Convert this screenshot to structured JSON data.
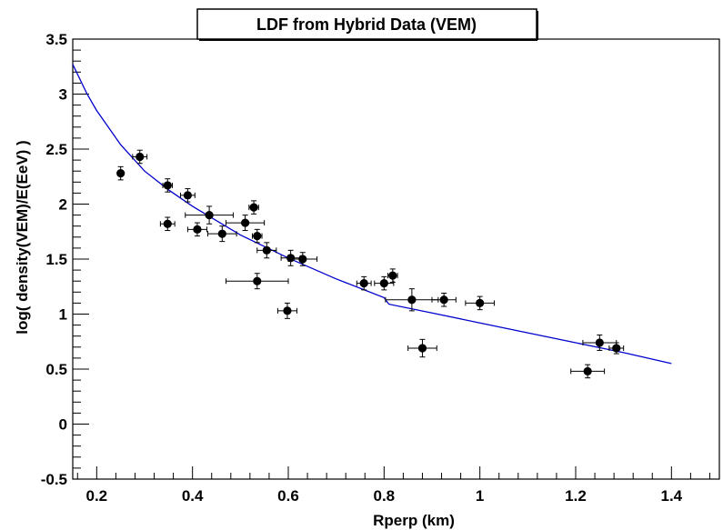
{
  "chart_data": {
    "type": "scatter",
    "title": "LDF from Hybrid Data (VEM)",
    "xlabel": "Rperp (km)",
    "ylabel": "log( density(VEM)/E(EeV) )",
    "xlim": [
      0.15,
      1.5
    ],
    "ylim": [
      -0.5,
      3.5
    ],
    "xticks": [
      {
        "v": 0.2,
        "label": "0.2"
      },
      {
        "v": 0.4,
        "label": "0.4"
      },
      {
        "v": 0.6,
        "label": "0.6"
      },
      {
        "v": 0.8,
        "label": "0.8"
      },
      {
        "v": 1.0,
        "label": "1"
      },
      {
        "v": 1.2,
        "label": "1.2"
      },
      {
        "v": 1.4,
        "label": "1.4"
      }
    ],
    "yticks": [
      {
        "v": -0.5,
        "label": "-0.5"
      },
      {
        "v": 0,
        "label": "0"
      },
      {
        "v": 0.5,
        "label": "0.5"
      },
      {
        "v": 1.0,
        "label": "1"
      },
      {
        "v": 1.5,
        "label": "1.5"
      },
      {
        "v": 2.0,
        "label": "2"
      },
      {
        "v": 2.5,
        "label": "2.5"
      },
      {
        "v": 3.0,
        "label": "3"
      },
      {
        "v": 3.5,
        "label": "3.5"
      }
    ],
    "grid": false,
    "colors": {
      "points": "#000000",
      "fit": "#0000cc",
      "frame": "#000000"
    },
    "points": [
      {
        "x": 0.25,
        "y": 2.28,
        "xerr": 0.0,
        "yerr": 0.06
      },
      {
        "x": 0.29,
        "y": 2.43,
        "xerr": 0.015,
        "yerr": 0.06
      },
      {
        "x": 0.348,
        "y": 2.17,
        "xerr": 0.01,
        "yerr": 0.06
      },
      {
        "x": 0.348,
        "y": 1.82,
        "xerr": 0.015,
        "yerr": 0.06
      },
      {
        "x": 0.39,
        "y": 2.08,
        "xerr": 0.015,
        "yerr": 0.06
      },
      {
        "x": 0.41,
        "y": 1.77,
        "xerr": 0.02,
        "yerr": 0.06
      },
      {
        "x": 0.435,
        "y": 1.9,
        "xerr": 0.05,
        "yerr": 0.08
      },
      {
        "x": 0.462,
        "y": 1.73,
        "xerr": 0.03,
        "yerr": 0.07
      },
      {
        "x": 0.51,
        "y": 1.83,
        "xerr": 0.04,
        "yerr": 0.07
      },
      {
        "x": 0.528,
        "y": 1.97,
        "xerr": 0.01,
        "yerr": 0.06
      },
      {
        "x": 0.535,
        "y": 1.71,
        "xerr": 0.01,
        "yerr": 0.06
      },
      {
        "x": 0.535,
        "y": 1.3,
        "xerr": 0.065,
        "yerr": 0.07
      },
      {
        "x": 0.555,
        "y": 1.58,
        "xerr": 0.02,
        "yerr": 0.07
      },
      {
        "x": 0.598,
        "y": 1.03,
        "xerr": 0.02,
        "yerr": 0.07
      },
      {
        "x": 0.605,
        "y": 1.51,
        "xerr": 0.02,
        "yerr": 0.07
      },
      {
        "x": 0.63,
        "y": 1.5,
        "xerr": 0.03,
        "yerr": 0.06
      },
      {
        "x": 0.758,
        "y": 1.28,
        "xerr": 0.015,
        "yerr": 0.06
      },
      {
        "x": 0.8,
        "y": 1.28,
        "xerr": 0.02,
        "yerr": 0.06
      },
      {
        "x": 0.818,
        "y": 1.35,
        "xerr": 0.01,
        "yerr": 0.06
      },
      {
        "x": 0.858,
        "y": 1.13,
        "xerr": 0.055,
        "yerr": 0.1
      },
      {
        "x": 0.88,
        "y": 0.69,
        "xerr": 0.03,
        "yerr": 0.08
      },
      {
        "x": 0.925,
        "y": 1.13,
        "xerr": 0.025,
        "yerr": 0.06
      },
      {
        "x": 1.0,
        "y": 1.1,
        "xerr": 0.03,
        "yerr": 0.06
      },
      {
        "x": 1.225,
        "y": 0.48,
        "xerr": 0.035,
        "yerr": 0.06
      },
      {
        "x": 1.25,
        "y": 0.74,
        "xerr": 0.035,
        "yerr": 0.07
      },
      {
        "x": 1.285,
        "y": 0.69,
        "xerr": 0.015,
        "yerr": 0.05
      }
    ],
    "fit": {
      "x": [
        0.15,
        0.18,
        0.2,
        0.25,
        0.3,
        0.35,
        0.4,
        0.5,
        0.6,
        0.7,
        0.8,
        0.81,
        0.9,
        1.0,
        1.1,
        1.2,
        1.3,
        1.4
      ],
      "y": [
        3.27,
        3.0,
        2.85,
        2.54,
        2.3,
        2.13,
        1.98,
        1.72,
        1.51,
        1.32,
        1.15,
        1.09,
        1.01,
        0.92,
        0.83,
        0.74,
        0.65,
        0.55
      ]
    }
  }
}
